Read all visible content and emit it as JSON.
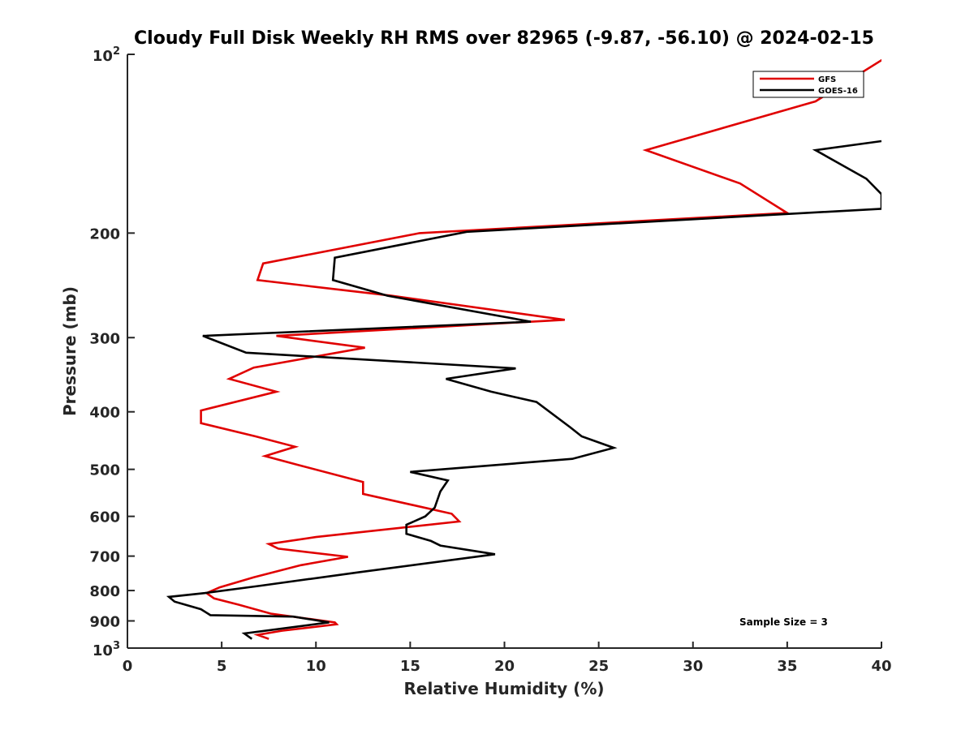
{
  "chart_data": {
    "type": "line",
    "title": "Cloudy Full Disk Weekly RH RMS over 82965 (-9.87, -56.10) @ 2024-02-15",
    "xlabel": "Relative Humidity (%)",
    "ylabel": "Pressure (mb)",
    "xlim": [
      0,
      40
    ],
    "ylim": [
      100,
      1000
    ],
    "yscale": "log",
    "y_inverted": true,
    "x_ticks": [
      "0",
      "5",
      "10",
      "15",
      "20",
      "25",
      "30",
      "35",
      "40"
    ],
    "y_ticks": [
      {
        "value": 200,
        "label": "200"
      },
      {
        "value": 300,
        "label": "300"
      },
      {
        "value": 400,
        "label": "400"
      },
      {
        "value": 500,
        "label": "500"
      },
      {
        "value": 600,
        "label": "600"
      },
      {
        "value": 700,
        "label": "700"
      },
      {
        "value": 800,
        "label": "800"
      },
      {
        "value": 900,
        "label": "900"
      }
    ],
    "y_end_labels": {
      "top_base": "10",
      "top_exp": "2",
      "bottom_base": "10",
      "bottom_exp": "3"
    },
    "legend_position": "top-right",
    "annotation": "Sample Size = 3",
    "series": [
      {
        "name": "GFS",
        "color": "#e00000",
        "x": [
          40.5,
          36.5,
          27.5,
          32.5,
          35.0,
          15.5,
          7.2,
          6.9,
          14.0,
          23.2,
          7.9,
          12.6,
          6.7,
          5.4,
          7.9,
          3.9,
          3.9,
          6.8,
          8.9,
          7.3,
          9.1,
          12.5,
          12.5,
          17.2,
          17.6,
          10.0,
          7.5,
          8.0,
          11.7,
          9.2,
          6.7,
          4.9,
          4.2,
          4.6,
          5.9,
          7.6,
          11.0,
          11.1,
          8.2,
          6.9,
          7.5
        ],
        "y": [
          100,
          120,
          145,
          165,
          185,
          200,
          225,
          240,
          255,
          280,
          298,
          312,
          337,
          352,
          370,
          398,
          418,
          440,
          458,
          475,
          492,
          525,
          550,
          594,
          612,
          650,
          668,
          680,
          702,
          725,
          760,
          790,
          808,
          825,
          845,
          875,
          905,
          912,
          935,
          950,
          965
        ]
      },
      {
        "name": "GOES-16",
        "color": "#000000",
        "x": [
          40.0,
          36.5,
          39.2,
          40.0,
          40.0,
          18.0,
          11.0,
          10.9,
          13.8,
          21.4,
          4.0,
          6.3,
          20.6,
          16.9,
          19.3,
          21.7,
          23.5,
          24.1,
          25.8,
          23.6,
          15.0,
          17.0,
          16.6,
          16.3,
          15.8,
          14.8,
          14.8,
          16.1,
          16.6,
          19.5,
          12.3,
          7.1,
          4.1,
          2.2,
          2.5,
          3.9,
          4.4,
          8.8,
          10.7,
          6.2,
          6.6
        ],
        "y": [
          140,
          145,
          162,
          172,
          182,
          199,
          220,
          240,
          255,
          282,
          298,
          318,
          338,
          352,
          370,
          385,
          425,
          440,
          460,
          480,
          505,
          522,
          545,
          580,
          600,
          620,
          642,
          660,
          672,
          695,
          745,
          785,
          808,
          820,
          835,
          860,
          880,
          885,
          905,
          945,
          965
        ]
      }
    ]
  }
}
